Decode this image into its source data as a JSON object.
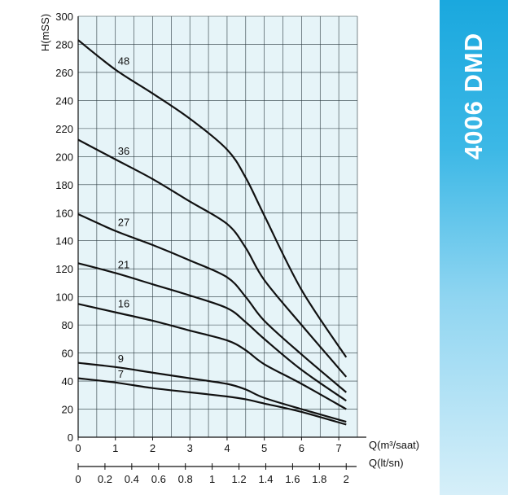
{
  "banner": {
    "title": "4006 DMD",
    "color": "#1aa8de"
  },
  "chart_data": {
    "type": "line",
    "ylabel": "H(mSS)",
    "xlabel": "Q(m³/saat)",
    "xlabel2": "Q(lt/sn)",
    "xlim": [
      0,
      7.5
    ],
    "ylim": [
      0,
      300
    ],
    "xticks": [
      0,
      1,
      2,
      3,
      4,
      5,
      6,
      7
    ],
    "yticks": [
      0,
      20,
      40,
      60,
      80,
      100,
      120,
      140,
      160,
      180,
      200,
      220,
      240,
      260,
      280,
      300
    ],
    "x2ticks": [
      "0",
      "0.2",
      "0.4",
      "0.6",
      "0.8",
      "1",
      "1.2",
      "1.4",
      "1.6",
      "1.8",
      "2"
    ],
    "x2tick_values": [
      0,
      0.2,
      0.4,
      0.6,
      0.8,
      1,
      1.2,
      1.4,
      1.6,
      1.8,
      2
    ],
    "x2_per_x": 0.2778,
    "grid": true,
    "background": "#e6f4f8",
    "series": [
      {
        "name": "48",
        "x": [
          0,
          1,
          2,
          3,
          4,
          4.5,
          5,
          6,
          7.2
        ],
        "y": [
          283,
          262,
          245,
          227,
          205,
          185,
          158,
          105,
          57
        ]
      },
      {
        "name": "36",
        "x": [
          0,
          1,
          2,
          3,
          4,
          4.5,
          5,
          6,
          7.2
        ],
        "y": [
          212,
          198,
          184,
          168,
          152,
          135,
          112,
          80,
          43
        ]
      },
      {
        "name": "27",
        "x": [
          0,
          1,
          2,
          3,
          4,
          4.5,
          5,
          6,
          7.2
        ],
        "y": [
          159,
          147,
          137,
          126,
          114,
          100,
          83,
          59,
          32
        ]
      },
      {
        "name": "21",
        "x": [
          0,
          1,
          2,
          3,
          4,
          4.5,
          5,
          6,
          7.2
        ],
        "y": [
          124,
          117,
          109,
          101,
          92,
          82,
          70,
          48,
          26
        ]
      },
      {
        "name": "16",
        "x": [
          0,
          1,
          2,
          3,
          4,
          4.5,
          5,
          6,
          7.2
        ],
        "y": [
          95,
          89,
          83,
          76,
          69,
          62,
          52,
          38,
          20
        ]
      },
      {
        "name": "9",
        "x": [
          0,
          1,
          2,
          3,
          4,
          4.5,
          5,
          6,
          7.2
        ],
        "y": [
          53,
          50,
          46,
          42,
          38,
          34,
          28,
          20,
          11
        ]
      },
      {
        "name": "7",
        "x": [
          0,
          1,
          2,
          3,
          4,
          4.5,
          5,
          6,
          7.2
        ],
        "y": [
          42,
          39,
          35,
          32,
          29,
          27,
          24,
          18,
          9
        ]
      }
    ]
  }
}
